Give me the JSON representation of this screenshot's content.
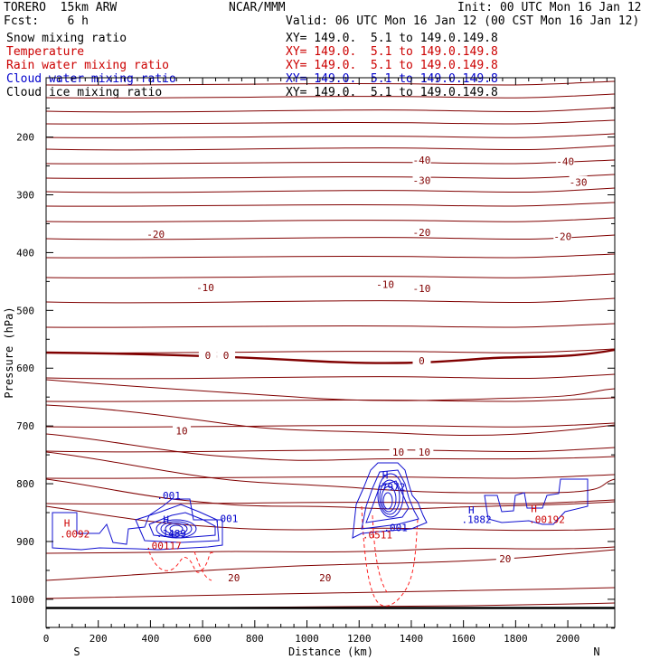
{
  "header": {
    "model": "TORERO  15km ARW",
    "org": "NCAR/MMM",
    "init": "Init: 00 UTC Mon 16 Jan 12",
    "fcst": "Fcst:    6 h",
    "valid": "Valid: 06 UTC Mon 16 Jan 12 (00 CST Mon 16 Jan 12)"
  },
  "legend": [
    {
      "label": "Snow mixing ratio",
      "xy": "",
      "color": "#000000"
    },
    {
      "label": "Temperature",
      "xy": "XY= 149.0.  5.1 to 149.0.149.8",
      "color": "#cc0000"
    },
    {
      "label": "Rain water mixing ratio",
      "xy": "XY= 149.0.  5.1 to 149.0.149.8",
      "color": "#cc0000"
    },
    {
      "label": "Cloud water mixing ratio",
      "xy": "XY= 149.0.  5.1 to 149.0.149.8",
      "color": "#0000cc"
    },
    {
      "label": "Cloud ice mixing ratio",
      "xy": "XY= 149.0.  5.1 to 149.0.149.8",
      "color": "#000000"
    }
  ],
  "snow_xy": "XY= 149.0.  5.1 to 149.0.149.8",
  "chart_data": {
    "type": "contour",
    "xlabel": "Distance (km)",
    "ylabel": "Pressure (hPa)",
    "xlim": [
      0,
      2180
    ],
    "ylim": [
      1050,
      100
    ],
    "xticks": [
      0,
      200,
      400,
      600,
      800,
      1000,
      1200,
      1400,
      1600,
      1800,
      2000
    ],
    "yticks": [
      200,
      300,
      400,
      500,
      600,
      700,
      800,
      900,
      1000
    ],
    "left_end": "S",
    "right_end": "N",
    "ground_pressure": 1015,
    "temperature_labels": [
      {
        "text": "-40",
        "x": 1440,
        "p": 240
      },
      {
        "text": "-40",
        "x": 1990,
        "p": 242
      },
      {
        "text": "-30",
        "x": 1440,
        "p": 275
      },
      {
        "text": "-30",
        "x": 2040,
        "p": 278
      },
      {
        "text": "-20",
        "x": 420,
        "p": 368
      },
      {
        "text": "-20",
        "x": 1440,
        "p": 365
      },
      {
        "text": "-20",
        "x": 1980,
        "p": 372
      },
      {
        "text": "-10",
        "x": 610,
        "p": 460
      },
      {
        "text": "-10",
        "x": 1300,
        "p": 455
      },
      {
        "text": "-10",
        "x": 1440,
        "p": 462
      },
      {
        "text": "0",
        "x": 620,
        "p": 578
      },
      {
        "text": "0",
        "x": 690,
        "p": 578
      },
      {
        "text": "0",
        "x": 1440,
        "p": 587
      },
      {
        "text": "10",
        "x": 520,
        "p": 708
      },
      {
        "text": "10",
        "x": 1350,
        "p": 745
      },
      {
        "text": "10",
        "x": 1450,
        "p": 745
      },
      {
        "text": "20",
        "x": 720,
        "p": 963
      },
      {
        "text": "20",
        "x": 1070,
        "p": 963
      },
      {
        "text": "20",
        "x": 1760,
        "p": 930
      }
    ],
    "max_markers": [
      {
        "text": "H",
        "x": 80,
        "p": 868,
        "color": "#cc0000"
      },
      {
        "text": ".0092",
        "x": 110,
        "p": 887,
        "color": "#cc0000"
      },
      {
        "text": ".001",
        "x": 470,
        "p": 820,
        "color": "#0000cc"
      },
      {
        "text": "H",
        "x": 460,
        "p": 862,
        "color": "#0000cc"
      },
      {
        "text": ".1489",
        "x": 480,
        "p": 886,
        "color": "#0000cc"
      },
      {
        "text": ".00117",
        "x": 450,
        "p": 907,
        "color": "#cc0000"
      },
      {
        "text": ".001",
        "x": 690,
        "p": 860,
        "color": "#0000cc"
      },
      {
        "text": "H",
        "x": 1300,
        "p": 785,
        "color": "#0000cc"
      },
      {
        "text": ".7972",
        "x": 1320,
        "p": 805,
        "color": "#0000cc"
      },
      {
        "text": ".001",
        "x": 1340,
        "p": 876,
        "color": "#0000cc"
      },
      {
        "text": ".0511",
        "x": 1270,
        "p": 888,
        "color": "#cc0000"
      },
      {
        "text": "H",
        "x": 1630,
        "p": 845,
        "color": "#0000cc"
      },
      {
        "text": ".1882",
        "x": 1650,
        "p": 862,
        "color": "#0000cc"
      },
      {
        "text": "H",
        "x": 1870,
        "p": 843,
        "color": "#cc0000"
      },
      {
        "text": ".00192",
        "x": 1920,
        "p": 862,
        "color": "#cc0000"
      }
    ],
    "colors": {
      "temperature": "#800000",
      "rain": "#ff2020",
      "cloud_water": "#1010d0",
      "frame": "#000000"
    }
  }
}
